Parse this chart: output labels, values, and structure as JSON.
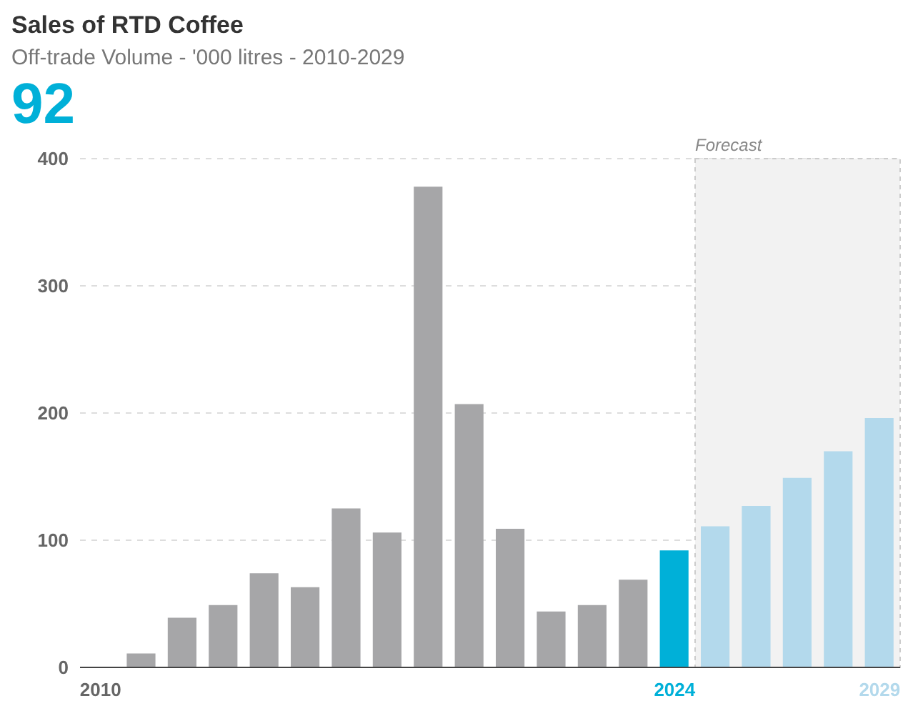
{
  "chart_data": {
    "type": "bar",
    "title": "Sales of RTD Coffee",
    "subtitle": "Off-trade Volume - '000 litres - 2010-2029",
    "annotations": [
      "92"
    ],
    "x": [
      2010,
      2011,
      2012,
      2013,
      2014,
      2015,
      2016,
      2017,
      2018,
      2019,
      2020,
      2021,
      2022,
      2023,
      2024,
      2025,
      2026,
      2027,
      2028,
      2029
    ],
    "values": [
      0,
      11,
      39,
      49,
      74,
      63,
      125,
      106,
      378,
      207,
      109,
      44,
      49,
      69,
      92,
      111,
      127,
      149,
      170,
      196
    ],
    "colors": [
      "#a6a6a8",
      "#a6a6a8",
      "#a6a6a8",
      "#a6a6a8",
      "#a6a6a8",
      "#a6a6a8",
      "#a6a6a8",
      "#a6a6a8",
      "#a6a6a8",
      "#a6a6a8",
      "#a6a6a8",
      "#a6a6a8",
      "#a6a6a8",
      "#a6a6a8",
      "#00b0d8",
      "#b3d9ec",
      "#b3d9ec",
      "#b3d9ec",
      "#b3d9ec",
      "#b3d9ec"
    ],
    "xlim": [
      2009.5,
      2029.5
    ],
    "xticks": [
      2010,
      2024,
      2029
    ],
    "ylim": [
      0,
      400
    ],
    "yticks": [
      0,
      100,
      200,
      300,
      400
    ],
    "grid": "y",
    "bands": [
      {
        "axis": "x",
        "from": 2024.5,
        "to": 2029.5,
        "label": "Forecast",
        "color": "#f2f2f2"
      }
    ]
  }
}
